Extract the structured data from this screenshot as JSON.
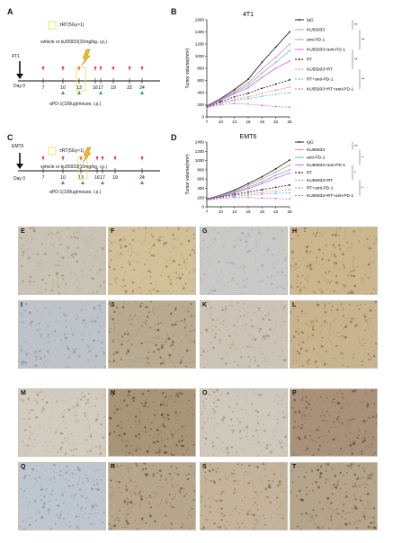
{
  "panels": {
    "A": {
      "letter": "A",
      "cell_label": "4T1",
      "day0": "Day 0",
      "rt_label": "±RT(5Gy×1)",
      "drug_label": "vehicle or ku55933(10mg/kg, i.p.)",
      "ab_label": "αPD-1(100ug/mouse, i.p.)",
      "days": [
        "7",
        "10",
        "13",
        "16",
        "17",
        "19",
        "22",
        "24"
      ]
    },
    "C": {
      "letter": "C",
      "cell_label": "EMT6",
      "day0": "Day 0",
      "rt_label": "±RT(5Gy×1)",
      "drug_label": "vehicle or ku55933(10mg/kg, i.p.)",
      "ab_label": "αPD-1(100ug/mouse, i.p.)",
      "days": [
        "7",
        "10",
        "13",
        "16",
        "17",
        "19",
        "24"
      ]
    },
    "B_letter": "B",
    "D_letter": "D"
  },
  "chart_data": [
    {
      "type": "line",
      "title": "4T1",
      "ylabel": "Tumor volume(mm³)",
      "xlabel": "",
      "x": [
        7,
        10,
        13,
        16,
        19,
        22,
        25
      ],
      "ylim": [
        0,
        1600
      ],
      "yticks": [
        0,
        200,
        400,
        600,
        800,
        1000,
        1200,
        1400,
        1600
      ],
      "series": [
        {
          "name": "IgG",
          "color": "#111111",
          "dash": "",
          "values": [
            180,
            300,
            450,
            620,
            900,
            1150,
            1400
          ]
        },
        {
          "name": "KU55933",
          "color": "#e88a8a",
          "dash": "",
          "values": [
            170,
            290,
            420,
            560,
            790,
            980,
            1200
          ]
        },
        {
          "name": "anti-PD-1",
          "color": "#6fb3e0",
          "dash": "",
          "values": [
            165,
            280,
            400,
            520,
            720,
            900,
            1090
          ]
        },
        {
          "name": "KU55933+anti-PD-1",
          "color": "#d070d0",
          "dash": "",
          "values": [
            160,
            270,
            380,
            480,
            650,
            800,
            920
          ]
        },
        {
          "name": "RT",
          "color": "#111111",
          "dash": "2,1.5",
          "values": [
            160,
            250,
            330,
            390,
            470,
            540,
            610
          ]
        },
        {
          "name": "KU55933+RT",
          "color": "#e88a8a",
          "dash": "2,1.5",
          "values": [
            155,
            230,
            290,
            330,
            390,
            440,
            490
          ]
        },
        {
          "name": "RT+anti-PD-1",
          "color": "#6fb3e0",
          "dash": "2,1.5",
          "values": [
            150,
            220,
            270,
            300,
            340,
            370,
            400
          ]
        },
        {
          "name": "KU55933+RT+anti-PD-1",
          "color": "#d070d0",
          "dash": "2,1.5",
          "values": [
            150,
            200,
            220,
            210,
            190,
            170,
            160
          ]
        }
      ],
      "sig_marks": [
        "**",
        "**",
        "**",
        "**"
      ]
    },
    {
      "type": "line",
      "title": "EMT6",
      "ylabel": "Tumor volume(mm³)",
      "xlabel": "",
      "x": [
        7,
        10,
        13,
        16,
        19,
        22,
        25
      ],
      "ylim": [
        0,
        1400
      ],
      "yticks": [
        0,
        200,
        400,
        600,
        800,
        1000,
        1200,
        1400
      ],
      "series": [
        {
          "name": "IgG",
          "color": "#111111",
          "dash": "",
          "values": [
            170,
            250,
            360,
            500,
            650,
            820,
            1010
          ]
        },
        {
          "name": "KU55933",
          "color": "#e88a8a",
          "dash": "",
          "values": [
            160,
            240,
            340,
            460,
            600,
            750,
            900
          ]
        },
        {
          "name": "anti-PD-1",
          "color": "#6fb3e0",
          "dash": "",
          "values": [
            155,
            230,
            320,
            420,
            540,
            680,
            800
          ]
        },
        {
          "name": "KU55933+anti-PD-1",
          "color": "#d070d0",
          "dash": "",
          "values": [
            150,
            220,
            300,
            390,
            500,
            620,
            730
          ]
        },
        {
          "name": "RT",
          "color": "#111111",
          "dash": "2,1.5",
          "values": [
            150,
            210,
            270,
            320,
            370,
            420,
            470
          ]
        },
        {
          "name": "KU55933+RT",
          "color": "#e88a8a",
          "dash": "2,1.5",
          "values": [
            145,
            200,
            250,
            280,
            310,
            340,
            370
          ]
        },
        {
          "name": "RT+anti-PD-1",
          "color": "#6fb3e0",
          "dash": "2,1.5",
          "values": [
            140,
            190,
            230,
            250,
            270,
            290,
            300
          ]
        },
        {
          "name": "KU55933+RT+anti-PD-1",
          "color": "#d070d0",
          "dash": "2,1.5",
          "values": [
            140,
            180,
            200,
            200,
            190,
            180,
            170
          ]
        }
      ],
      "sig_marks": [
        "**",
        "*",
        "*",
        "*"
      ]
    }
  ],
  "ihc": {
    "rows": [
      [
        {
          "letter": "E",
          "color": "#c8c3b5",
          "dots": "#a08c6c"
        },
        {
          "letter": "F",
          "color": "#d2c09a",
          "dots": "#9a7440"
        },
        {
          "letter": "G",
          "color": "#c9cac8",
          "dots": "#9da5b5"
        },
        {
          "letter": "H",
          "color": "#cbb68e",
          "dots": "#8e6a3c"
        }
      ],
      [
        {
          "letter": "I",
          "color": "#bdc3c9",
          "dots": "#8a93a8"
        },
        {
          "letter": "J",
          "color": "#b9ab92",
          "dots": "#7a5530"
        },
        {
          "letter": "K",
          "color": "#ccc4b6",
          "dots": "#a3906c"
        },
        {
          "letter": "L",
          "color": "#c7b48e",
          "dots": "#8c6a3c"
        }
      ],
      [
        {
          "letter": "M",
          "color": "#d2ccc0",
          "dots": "#a49478"
        },
        {
          "letter": "N",
          "color": "#a89578",
          "dots": "#5e4428"
        },
        {
          "letter": "O",
          "color": "#cfc8bc",
          "dots": "#a39580"
        },
        {
          "letter": "P",
          "color": "#a99078",
          "dots": "#6a4c34"
        }
      ],
      [
        {
          "letter": "Q",
          "color": "#bec6d0",
          "dots": "#8a8f9e"
        },
        {
          "letter": "R",
          "color": "#b6a68c",
          "dots": "#6c5234"
        },
        {
          "letter": "S",
          "color": "#c2b39a",
          "dots": "#85684a"
        },
        {
          "letter": "T",
          "color": "#b4a48a",
          "dots": "#6c5030"
        }
      ]
    ]
  }
}
